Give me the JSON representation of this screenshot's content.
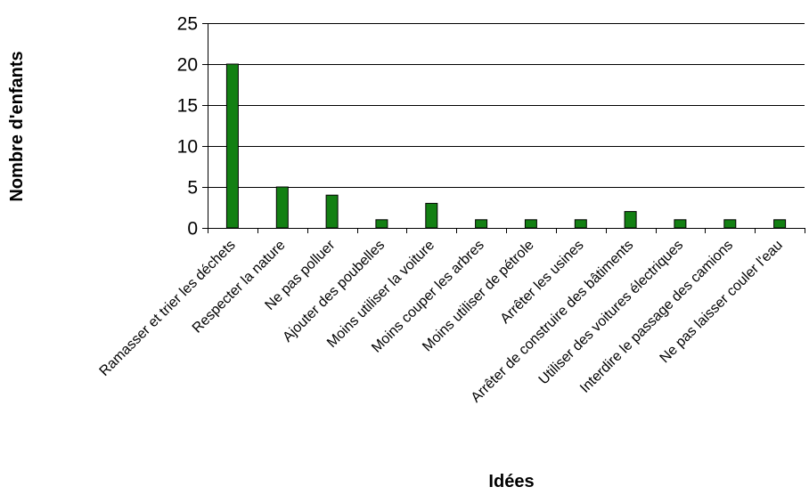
{
  "chart_data": {
    "type": "bar",
    "xlabel": "Idées",
    "ylabel": "Nombre d'enfants",
    "ylim": [
      0,
      25
    ],
    "yticks": [
      0,
      5,
      10,
      15,
      20,
      25
    ],
    "grid": true,
    "legend": "none",
    "bar_color": "#138013",
    "categories": [
      "Ramasser et trier les déchets",
      "Respecter la nature",
      "Ne pas polluer",
      "Ajouter des poubelles",
      "Moins utiliser la voiture",
      "Moins couper les arbres",
      "Moins utiliser de pétrole",
      "Arrêter les usines",
      "Arrêter de construire des bâtiments",
      "Utiliser des voitures électriques",
      "Interdire le passage des camions",
      "Ne pas laisser couler l'eau"
    ],
    "values": [
      20,
      5,
      4,
      1,
      3,
      1,
      1,
      1,
      2,
      1,
      1,
      1
    ]
  }
}
